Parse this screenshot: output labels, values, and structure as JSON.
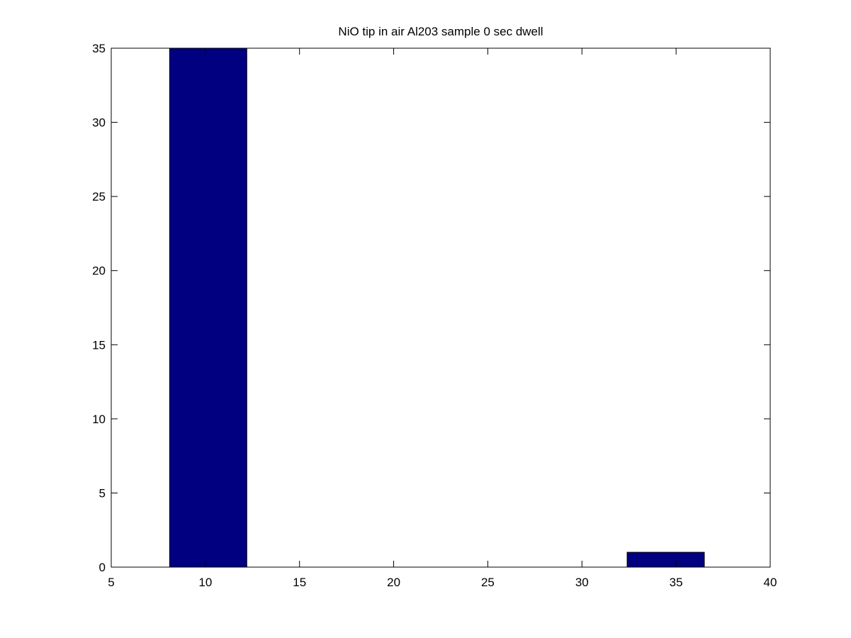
{
  "chart_data": {
    "type": "bar",
    "title": "NiO tip in air Al203 sample 0 sec dwell",
    "xlabel": "",
    "ylabel": "",
    "xlim": [
      5,
      40
    ],
    "ylim": [
      0,
      35
    ],
    "x_ticks": [
      5,
      10,
      15,
      20,
      25,
      30,
      35,
      40
    ],
    "y_ticks": [
      0,
      5,
      10,
      15,
      20,
      25,
      30,
      35
    ],
    "grid": false,
    "legend": "none",
    "bars": [
      {
        "x_start": 8.1,
        "x_end": 12.2,
        "value": 35
      },
      {
        "x_start": 32.4,
        "x_end": 36.5,
        "value": 1
      }
    ],
    "colors": {
      "bar_fill": "#000080",
      "bar_edge": "#000000",
      "axes": "#000000",
      "background": "#ffffff"
    }
  }
}
